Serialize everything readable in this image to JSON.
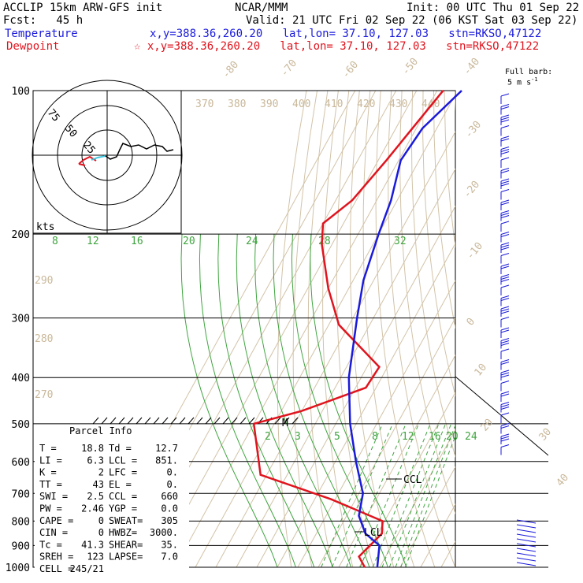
{
  "header": {
    "model": "ACCLIP 15km ARW-GFS init",
    "center": "NCAR/MMM",
    "init": "Init: 00 UTC Thu 01 Sep 22",
    "fcst": "Fcst:   45 h",
    "valid": "Valid: 21 UTC Fri 02 Sep 22 (06 KST Sat 03 Sep 22)",
    "temp_label": "Temperature",
    "temp_loc": "x,y=388.36,260.20   lat,lon= 37.10, 127.03   stn=RKSO,47122",
    "dew_label": "Dewpoint",
    "dew_loc": "☆ x,y=388.36,260.20   lat,lon= 37.10, 127.03   stn=RKSO,47122",
    "barb_label_1": "Full barb:",
    "barb_label_2": "5 m s",
    "barb_label_sup": "-1"
  },
  "chart_data": {
    "type": "line",
    "pressure_levels": [
      "100",
      "200",
      "300",
      "400",
      "500",
      "600",
      "700",
      "800",
      "900",
      "1000"
    ],
    "series": [
      {
        "name": "Temperature",
        "color": "#1a1adc",
        "points": [
          [
            -68,
            100
          ],
          [
            -77,
            120
          ],
          [
            -79,
            140
          ],
          [
            -73,
            170
          ],
          [
            -70,
            200
          ],
          [
            -65,
            250
          ],
          [
            -58,
            300
          ],
          [
            -46,
            400
          ],
          [
            -33,
            500
          ],
          [
            -20,
            600
          ],
          [
            -8,
            700
          ],
          [
            -4,
            780
          ],
          [
            4,
            850
          ],
          [
            14,
            900
          ],
          [
            18.8,
            1000
          ]
        ]
      },
      {
        "name": "Dewpoint",
        "color": "#e0141e",
        "points": [
          [
            -77,
            100
          ],
          [
            -86,
            140
          ],
          [
            -92,
            170
          ],
          [
            -100,
            190
          ],
          [
            -95,
            210
          ],
          [
            -80,
            260
          ],
          [
            -65,
            310
          ],
          [
            -34,
            380
          ],
          [
            -35,
            420
          ],
          [
            -60,
            470
          ],
          [
            -80,
            500
          ],
          [
            -63,
            640
          ],
          [
            -22,
            720
          ],
          [
            9,
            800
          ],
          [
            12,
            850
          ],
          [
            7,
            950
          ],
          [
            12.7,
            1000
          ]
        ]
      }
    ],
    "mixing_ratio_labels": [
      "8",
      "12",
      "16",
      "20",
      "24",
      "28",
      "32"
    ],
    "mixing_ratio_labels_lower": [
      "2",
      "3",
      "5",
      "8",
      "12",
      "16",
      "20",
      "24"
    ],
    "isotherm_labels": [
      "-80",
      "-70",
      "-60",
      "-50",
      "-40",
      "-30",
      "-20",
      "-10",
      "0",
      "10",
      "20",
      "30",
      "40"
    ],
    "theta_labels": [
      "370",
      "380",
      "390",
      "400",
      "410",
      "420",
      "430",
      "440"
    ],
    "theta_side_labels": [
      "290",
      "280",
      "270"
    ],
    "markers": {
      "ccl": "CCL",
      "lcl": "LCL",
      "m": "M"
    },
    "hodograph": {
      "rings": [
        "75",
        "50",
        "25"
      ],
      "unit": "kts"
    },
    "parcel_info": {
      "title": "Parcel Info",
      "rows": [
        [
          "T  =",
          "18.8",
          "Td =",
          "12.7"
        ],
        [
          "LI =",
          "6.3",
          "LCL =",
          "851."
        ],
        [
          "K  =",
          "2",
          "LFC =",
          "0."
        ],
        [
          "TT =",
          "43",
          "EL  =",
          "0."
        ],
        [
          "SWI =",
          "2.5",
          "CCL =",
          "660"
        ],
        [
          "PW =",
          "2.46",
          "YGP =",
          "0.0"
        ],
        [
          "CAPE =",
          "0",
          "SWEAT=",
          "305"
        ],
        [
          "CIN =",
          "0",
          "HWBZ=",
          "3000."
        ],
        [
          "Tc =",
          "41.3",
          "SHEAR=",
          "35."
        ],
        [
          "SREH =",
          "123",
          "LAPSE=",
          "7.0"
        ],
        [
          "CELL =",
          "245/21",
          "",
          ""
        ]
      ]
    }
  }
}
